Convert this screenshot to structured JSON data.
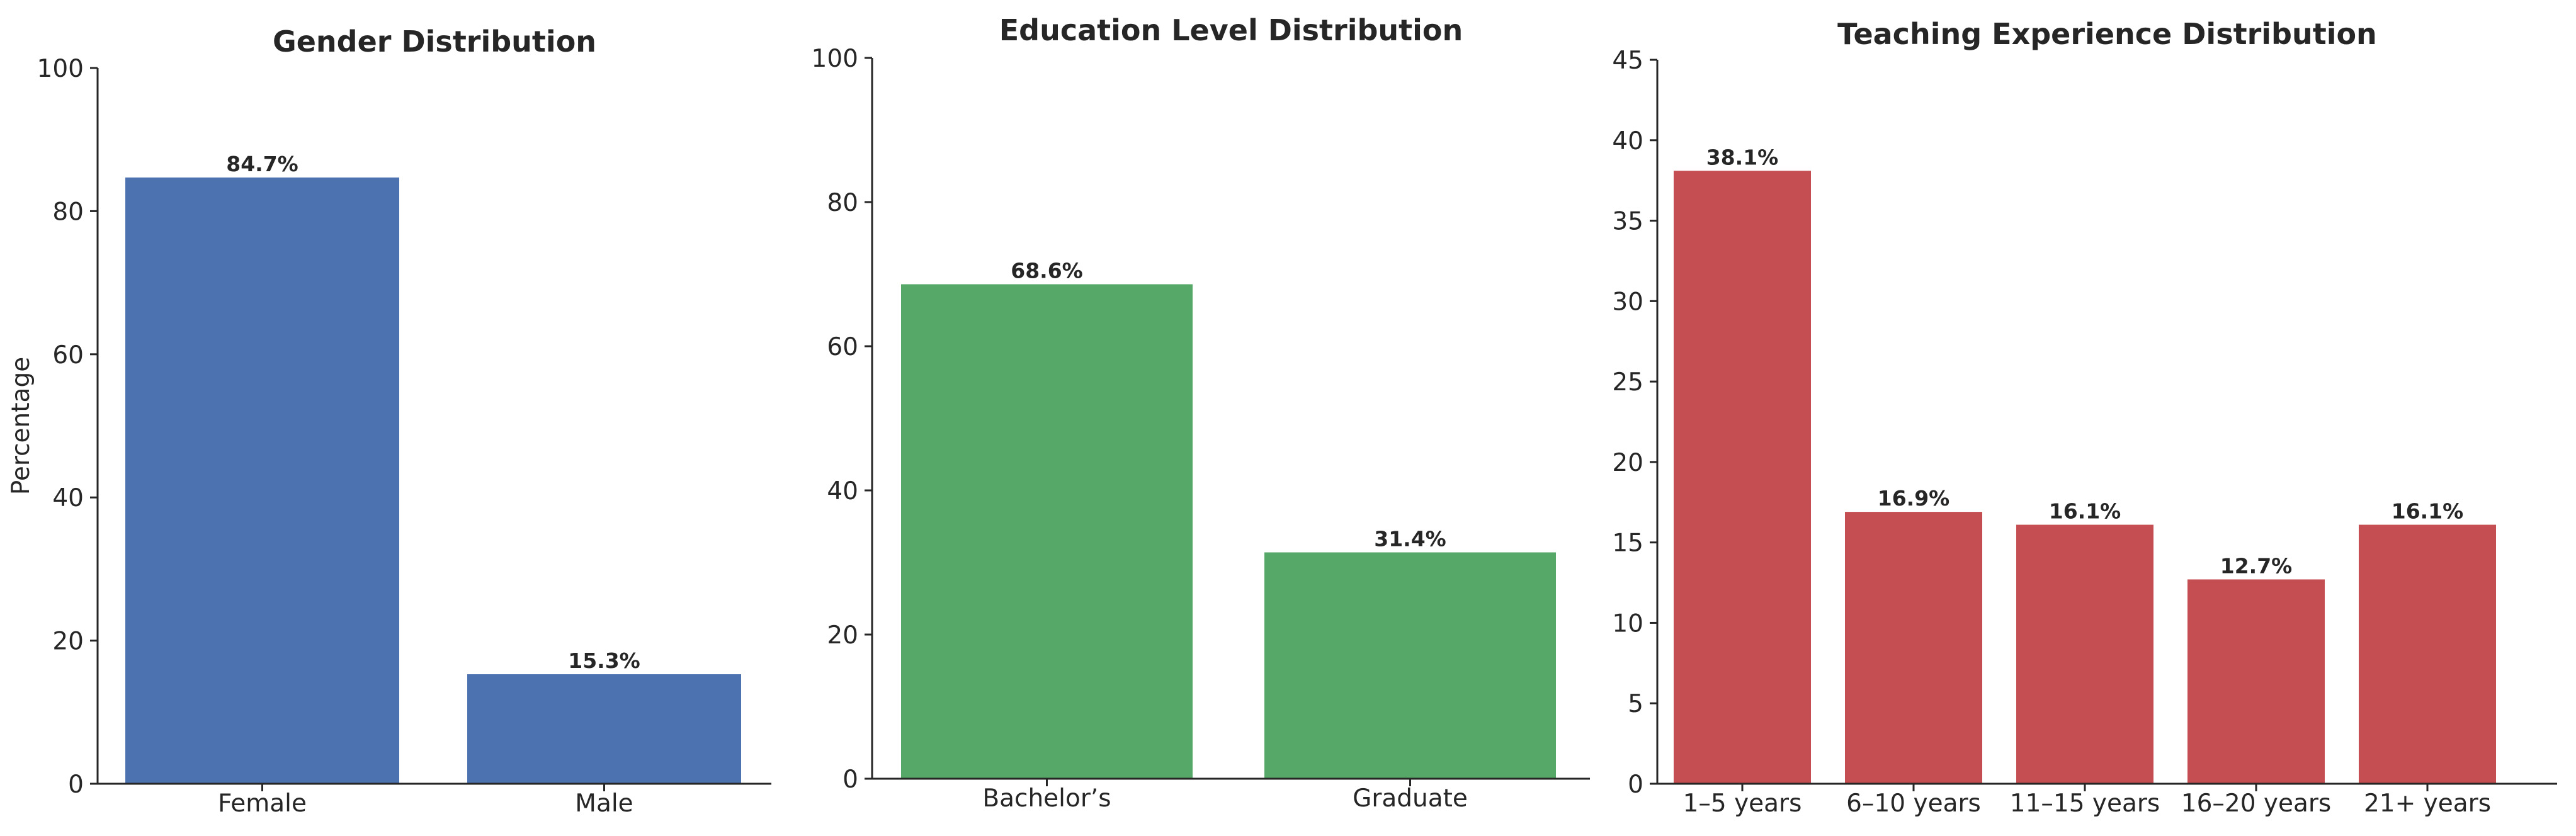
{
  "chart_data": [
    {
      "type": "bar",
      "title": "Gender Distribution",
      "xlabel": "",
      "ylabel": "Percentage",
      "categories": [
        "Female",
        "Male"
      ],
      "values": [
        84.7,
        15.3
      ],
      "value_labels": [
        "84.7%",
        "15.3%"
      ],
      "ylim": [
        0,
        100
      ],
      "yticks": [
        0,
        20,
        40,
        60,
        80,
        100
      ],
      "color": "#4c72b0",
      "grid": false
    },
    {
      "type": "bar",
      "title": "Education Level Distribution",
      "xlabel": "",
      "ylabel": "",
      "categories": [
        "Bachelor’s",
        "Graduate"
      ],
      "values": [
        68.6,
        31.4
      ],
      "value_labels": [
        "68.6%",
        "31.4%"
      ],
      "ylim": [
        0,
        100
      ],
      "yticks": [
        0,
        20,
        40,
        60,
        80,
        100
      ],
      "color": "#55a868",
      "grid": false
    },
    {
      "type": "bar",
      "title": "Teaching Experience Distribution",
      "xlabel": "",
      "ylabel": "",
      "categories": [
        "1–5 years",
        "6–10 years",
        "11–15 years",
        "16–20 years",
        "21+ years"
      ],
      "values": [
        38.1,
        16.9,
        16.1,
        12.7,
        16.1
      ],
      "value_labels": [
        "38.1%",
        "16.9%",
        "16.1%",
        "12.7%",
        "16.1%"
      ],
      "ylim": [
        0,
        45
      ],
      "yticks": [
        0,
        5,
        10,
        15,
        20,
        25,
        30,
        35,
        40,
        45
      ],
      "color": "#c44e52",
      "grid": false
    }
  ]
}
